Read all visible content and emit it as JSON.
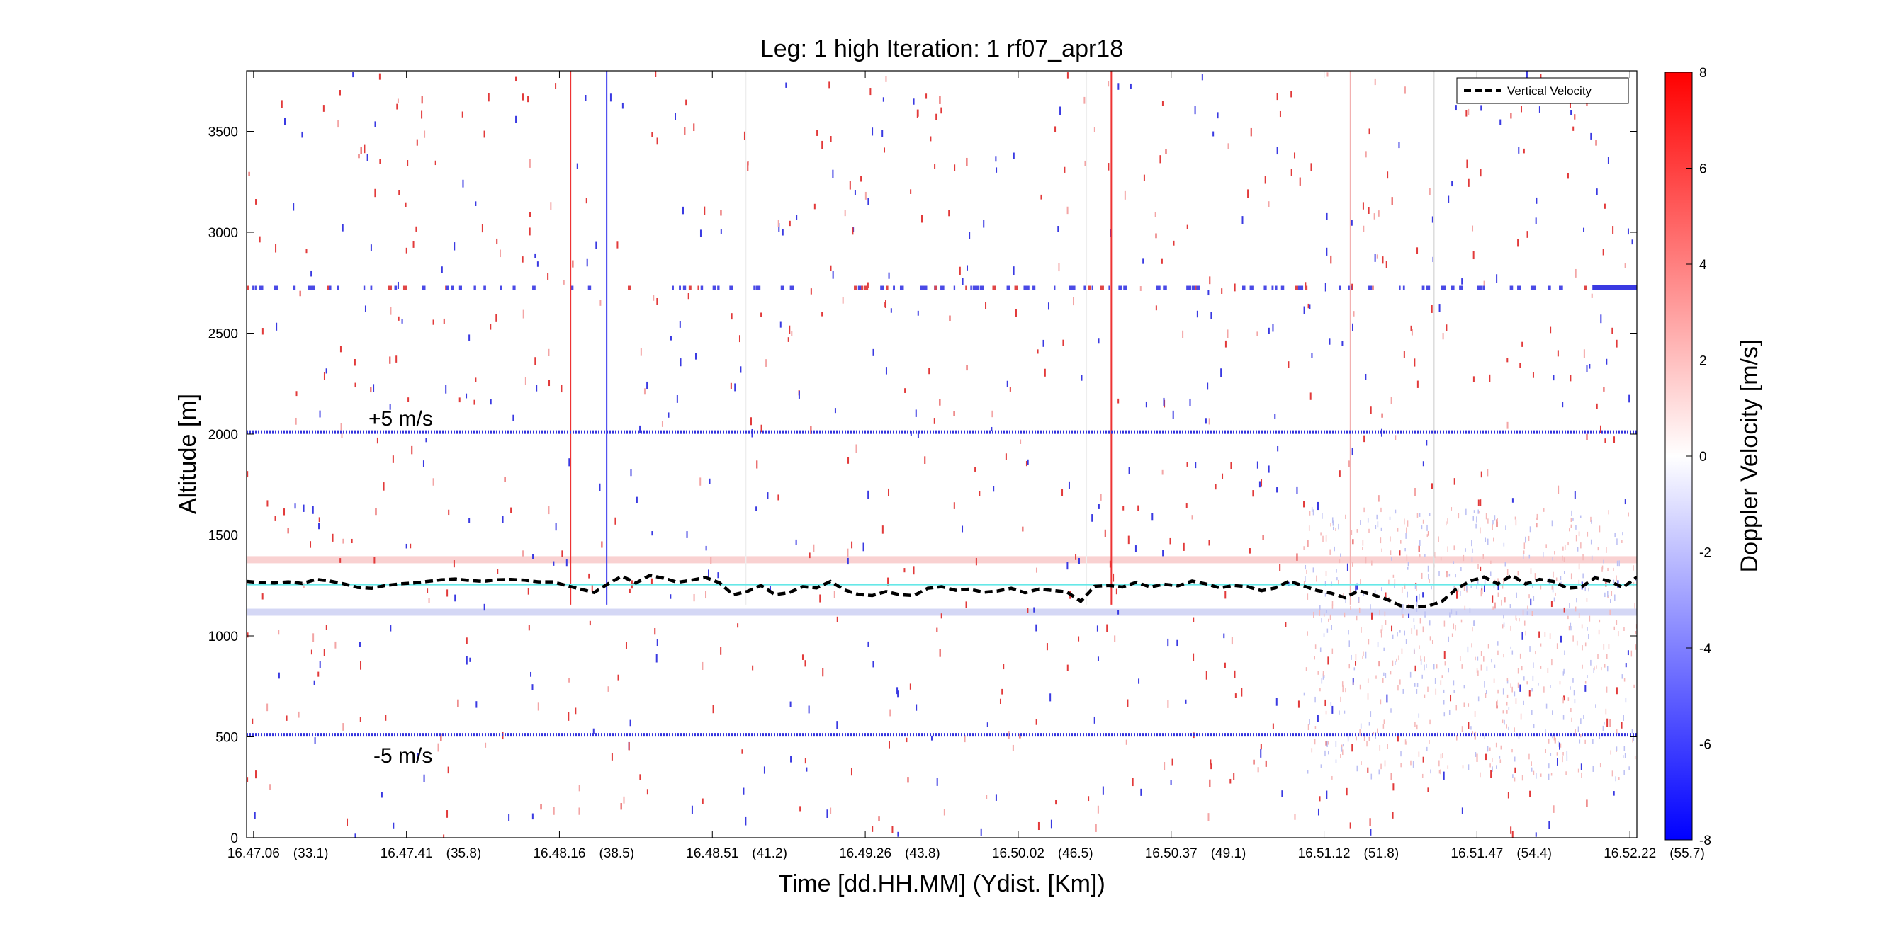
{
  "chart_data": {
    "type": "heatmap",
    "title": "Leg: 1 high Iteration: 1  rf07_apr18",
    "xlabel": "Time [dd.HH.MM]    (Ydist. [Km])",
    "ylabel": "Altitude [m]",
    "xlim": [
      0,
      100
    ],
    "ylim": [
      0,
      3800
    ],
    "x_ticks": [
      {
        "x": 0.5,
        "time": "16.47.06",
        "dist": "(33.1)"
      },
      {
        "x": 11.5,
        "time": "16.47.41",
        "dist": "(35.8)"
      },
      {
        "x": 22.5,
        "time": "16.48.16",
        "dist": "(38.5)"
      },
      {
        "x": 33.5,
        "time": "16.48.51",
        "dist": "(41.2)"
      },
      {
        "x": 44.5,
        "time": "16.49.26",
        "dist": "(43.8)"
      },
      {
        "x": 55.5,
        "time": "16.50.02",
        "dist": "(46.5)"
      },
      {
        "x": 66.5,
        "time": "16.50.37",
        "dist": "(49.1)"
      },
      {
        "x": 77.5,
        "time": "16.51.12",
        "dist": "(51.8)"
      },
      {
        "x": 88.5,
        "time": "16.51.47",
        "dist": "(54.4)"
      },
      {
        "x": 99.5,
        "time": "16.52.22",
        "dist": "(55.7)"
      }
    ],
    "y_ticks": [
      0,
      500,
      1000,
      1500,
      2000,
      2500,
      3000,
      3500
    ],
    "colorbar": {
      "label": "Doppler Velocity [m/s]",
      "range": [
        -8,
        8
      ],
      "ticks": [
        8,
        6,
        4,
        2,
        0,
        -2,
        -4,
        -6,
        -8
      ],
      "colormap": [
        "#0000ff",
        "#ffffff",
        "#ff0000"
      ]
    },
    "legend": {
      "position": "top-right",
      "entries": [
        {
          "name": "Vertical Velocity",
          "style": "dashed",
          "color": "#000000"
        }
      ]
    },
    "reference_lines": {
      "plus5_altitude": 2010,
      "minus5_altitude": 510,
      "zero_altitude": 1255,
      "plus5_label": "+5 m/s",
      "minus5_label": "-5 m/s",
      "plus5_color": "#3333dd",
      "minus5_color": "#3333dd",
      "zero_color": "#66e8e8"
    },
    "bands": [
      {
        "y0": 1360,
        "y1": 1395,
        "color": "#f7c6c6"
      },
      {
        "y0": 1100,
        "y1": 1135,
        "color": "#c9cdf2"
      }
    ],
    "vertical_lines": [
      {
        "x": 23.3,
        "y0": 1155,
        "y1": 3800,
        "color": "#ee3333"
      },
      {
        "x": 25.9,
        "y0": 1155,
        "y1": 3800,
        "color": "#3333ee"
      },
      {
        "x": 62.2,
        "y0": 1155,
        "y1": 3800,
        "color": "#ee3333"
      },
      {
        "x": 79.4,
        "y0": 1155,
        "y1": 3800,
        "color": "#f2b0b0"
      },
      {
        "x": 85.4,
        "y0": 1155,
        "y1": 3800,
        "color": "#dddddd"
      },
      {
        "x": 35.9,
        "y0": 1155,
        "y1": 3800,
        "color": "#eeeeee"
      },
      {
        "x": 60.4,
        "y0": 1155,
        "y1": 3800,
        "color": "#eeeeee"
      }
    ],
    "series": [
      {
        "name": "Vertical Velocity",
        "style": "dashed",
        "color": "#000000",
        "x": [
          0,
          1,
          2,
          3,
          4,
          5,
          6,
          7,
          8,
          9,
          10,
          11,
          12,
          13,
          14,
          15,
          16,
          17,
          18,
          19,
          20,
          21,
          22,
          23,
          24,
          25,
          26,
          27,
          28,
          29,
          30,
          31,
          32,
          33,
          34,
          35,
          36,
          37,
          38,
          39,
          40,
          41,
          42,
          43,
          44,
          45,
          46,
          47,
          48,
          49,
          50,
          51,
          52,
          53,
          54,
          55,
          56,
          57,
          58,
          59,
          60,
          61,
          62,
          63,
          64,
          65,
          66,
          67,
          68,
          69,
          70,
          71,
          72,
          73,
          74,
          75,
          76,
          77,
          78,
          79,
          80,
          81,
          82,
          83,
          84,
          85,
          86,
          87,
          88,
          89,
          90,
          91,
          92,
          93,
          94,
          95,
          96,
          97,
          98,
          99,
          100
        ],
        "y": [
          1270,
          1265,
          1262,
          1268,
          1260,
          1280,
          1272,
          1258,
          1240,
          1236,
          1250,
          1258,
          1262,
          1270,
          1278,
          1282,
          1275,
          1270,
          1278,
          1280,
          1276,
          1268,
          1268,
          1250,
          1232,
          1215,
          1258,
          1296,
          1262,
          1300,
          1286,
          1266,
          1276,
          1290,
          1264,
          1204,
          1220,
          1250,
          1205,
          1214,
          1244,
          1238,
          1270,
          1228,
          1206,
          1200,
          1220,
          1204,
          1200,
          1236,
          1244,
          1226,
          1232,
          1216,
          1222,
          1236,
          1214,
          1232,
          1225,
          1218,
          1172,
          1246,
          1250,
          1242,
          1266,
          1242,
          1256,
          1248,
          1272,
          1258,
          1238,
          1250,
          1244,
          1224,
          1238,
          1272,
          1248,
          1225,
          1212,
          1190,
          1224,
          1204,
          1182,
          1150,
          1142,
          1148,
          1172,
          1232,
          1272,
          1292,
          1258,
          1300,
          1258,
          1280,
          1270,
          1236,
          1242,
          1288,
          1272,
          1240,
          1292
        ]
      }
    ]
  }
}
